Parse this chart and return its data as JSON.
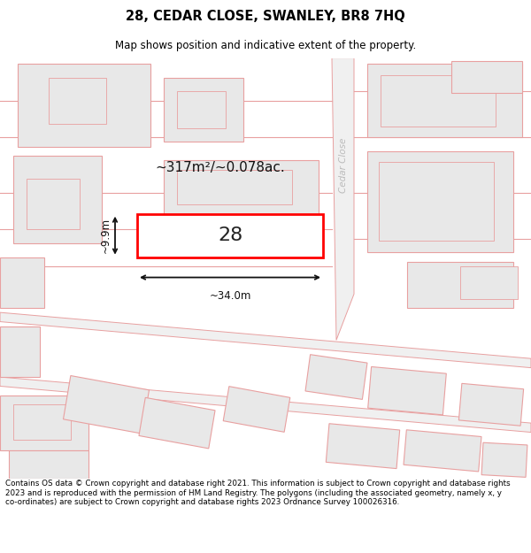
{
  "title": "28, CEDAR CLOSE, SWANLEY, BR8 7HQ",
  "subtitle": "Map shows position and indicative extent of the property.",
  "footer": "Contains OS data © Crown copyright and database right 2021. This information is subject to Crown copyright and database rights 2023 and is reproduced with the permission of HM Land Registry. The polygons (including the associated geometry, namely x, y co-ordinates) are subject to Crown copyright and database rights 2023 Ordnance Survey 100026316.",
  "area_text": "~317m²/~0.078ac.",
  "width_text": "~34.0m",
  "height_text": "~9.9m",
  "number_text": "28",
  "road_label": "Cedar Close",
  "map_bg": "#ffffff",
  "building_face": "#e8e8e8",
  "building_edge": "#e8a0a0",
  "road_face": "#f0f0f0",
  "road_edge": "#e8a0a0",
  "prop_face": "#ffffff",
  "prop_edge": "#ff0000",
  "annot_color": "#111111",
  "road_label_color": "#bbbbbb"
}
